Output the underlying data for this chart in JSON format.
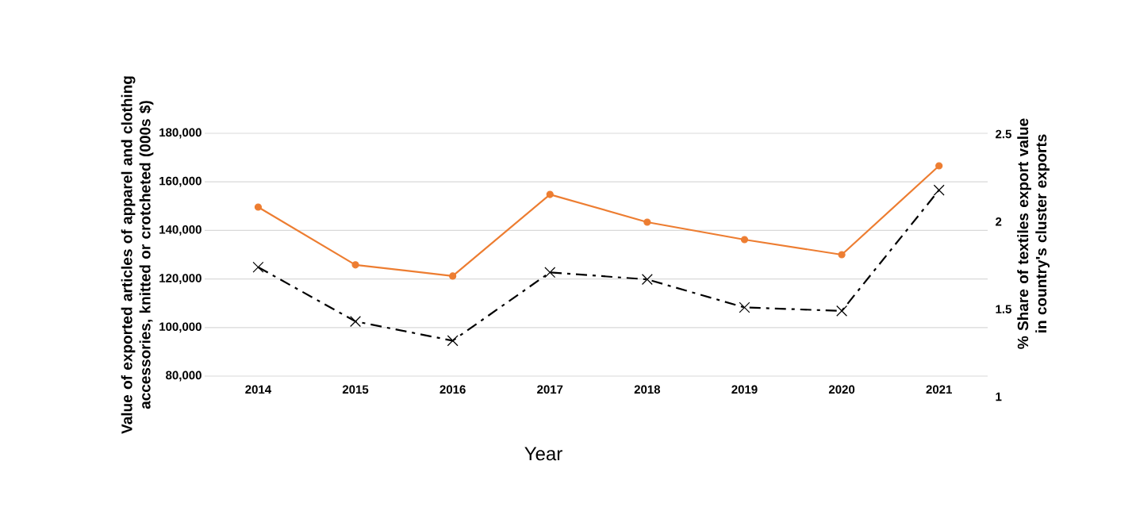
{
  "chart_data": {
    "type": "line",
    "categories": [
      "2014",
      "2015",
      "2016",
      "2017",
      "2018",
      "2019",
      "2020",
      "2021"
    ],
    "xlabel": "Year",
    "ylabel": "Value of exported articles of apparel and clothing accessories, knitted or crotcheted (000s $)",
    "y2label": "% Share of textiles export value in country's cluster exports",
    "series": [
      {
        "color": "#ed7d31",
        "marker": "circle",
        "line_style": "solid",
        "values": [
          149600,
          125800,
          121200,
          154800,
          143400,
          136200,
          130000,
          166600
        ]
      },
      {
        "color": "#000000",
        "marker": "cross",
        "line_style": "dashed",
        "axis": "y2",
        "values": [
          1.74,
          1.43,
          1.32,
          1.71,
          1.67,
          1.51,
          1.49,
          2.18
        ]
      }
    ],
    "ylim": [
      80000,
      180000
    ],
    "yticks": [
      {
        "value": 80000,
        "label": "80,000"
      },
      {
        "value": 100000,
        "label": "100,000"
      },
      {
        "value": 120000,
        "label": "120,000"
      },
      {
        "value": 140000,
        "label": "140,000"
      },
      {
        "value": 160000,
        "label": "160,000"
      },
      {
        "value": 180000,
        "label": "180,000"
      }
    ],
    "y2lim": [
      1,
      2.5
    ],
    "y2ticks": [
      1,
      1.5,
      2,
      2.5
    ],
    "grid": "y"
  }
}
